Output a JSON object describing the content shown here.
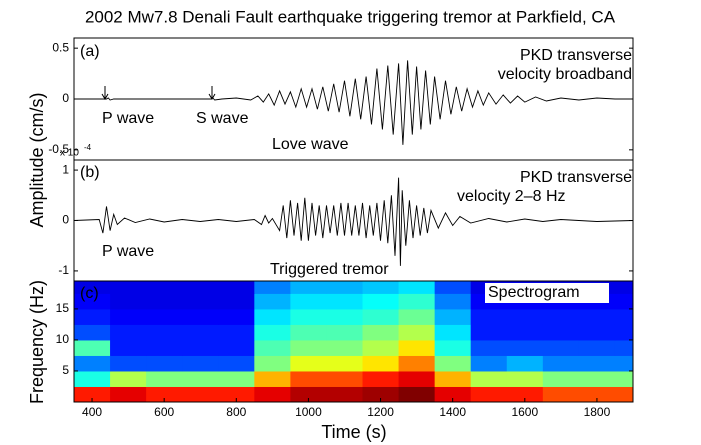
{
  "chart_data": [
    {
      "type": "line",
      "title": "2002 Mw7.8 Denali Fault earthquake triggering tremor at Parkfield, CA",
      "ylabel": "Amplitude (cm/s)",
      "panel_label": "(a)",
      "label_lines": [
        "PKD transverse",
        "velocity broadband"
      ],
      "annotations": [
        "P wave",
        "S wave",
        "Love wave"
      ],
      "multiplier": "x 10",
      "multiplier_exp": "-4",
      "xlim": [
        350,
        1900
      ],
      "ylim": [
        -0.6,
        0.6
      ],
      "yticks": [
        0.5,
        0,
        -0.5
      ],
      "color": "#000000",
      "x": [
        350,
        440,
        445,
        450,
        460,
        730,
        735,
        740,
        760,
        800,
        840,
        860,
        875,
        890,
        905,
        920,
        935,
        950,
        965,
        980,
        995,
        1010,
        1025,
        1040,
        1055,
        1070,
        1085,
        1100,
        1115,
        1130,
        1145,
        1160,
        1175,
        1190,
        1205,
        1220,
        1235,
        1250,
        1262,
        1275,
        1288,
        1300,
        1312,
        1325,
        1338,
        1350,
        1365,
        1380,
        1395,
        1410,
        1425,
        1440,
        1455,
        1470,
        1485,
        1500,
        1520,
        1540,
        1560,
        1580,
        1600,
        1630,
        1660,
        1700,
        1750,
        1800,
        1850,
        1900
      ],
      "values": [
        0,
        0,
        0.01,
        -0.01,
        0,
        0,
        0.01,
        -0.01,
        0,
        0.01,
        -0.01,
        0.03,
        -0.03,
        0.05,
        -0.06,
        0.08,
        -0.05,
        0.07,
        -0.08,
        0.1,
        -0.08,
        0.1,
        -0.1,
        0.12,
        -0.12,
        0.15,
        -0.13,
        0.18,
        -0.17,
        0.2,
        -0.2,
        0.22,
        -0.25,
        0.3,
        -0.3,
        0.33,
        -0.35,
        0.35,
        -0.45,
        0.38,
        -0.35,
        0.32,
        -0.3,
        0.28,
        -0.25,
        0.22,
        -0.2,
        0.18,
        -0.15,
        0.12,
        -0.12,
        0.1,
        -0.08,
        0.08,
        -0.06,
        0.06,
        -0.05,
        0.04,
        -0.04,
        0.03,
        -0.03,
        0.02,
        -0.02,
        0.01,
        -0.01,
        0.01,
        0,
        0
      ]
    },
    {
      "type": "line",
      "panel_label": "(b)",
      "label_lines": [
        "PKD transverse",
        "velocity 2–8 Hz"
      ],
      "annotations": [
        "P wave",
        "Triggered tremor"
      ],
      "xlim": [
        350,
        1900
      ],
      "ylim": [
        -1.2,
        1.2
      ],
      "yticks": [
        1,
        0,
        -1
      ],
      "color": "#000000",
      "x": [
        350,
        420,
        430,
        440,
        450,
        460,
        470,
        490,
        520,
        560,
        600,
        650,
        700,
        750,
        800,
        850,
        870,
        880,
        890,
        900,
        920,
        930,
        940,
        950,
        960,
        970,
        980,
        990,
        1000,
        1010,
        1020,
        1030,
        1040,
        1050,
        1060,
        1070,
        1080,
        1090,
        1100,
        1110,
        1120,
        1130,
        1140,
        1150,
        1160,
        1170,
        1180,
        1190,
        1200,
        1210,
        1220,
        1230,
        1240,
        1250,
        1255,
        1260,
        1270,
        1280,
        1290,
        1300,
        1310,
        1320,
        1330,
        1340,
        1360,
        1380,
        1400,
        1420,
        1450,
        1500,
        1550,
        1600,
        1650,
        1700,
        1800,
        1900
      ],
      "values": [
        0,
        0.02,
        -0.25,
        0.28,
        -0.2,
        0.12,
        -0.08,
        0.05,
        -0.04,
        0.03,
        -0.03,
        0.02,
        -0.02,
        0.02,
        -0.02,
        0.02,
        -0.08,
        0.1,
        -0.05,
        0.04,
        -0.2,
        0.3,
        -0.35,
        0.4,
        -0.3,
        0.35,
        -0.4,
        0.45,
        -0.4,
        0.35,
        -0.3,
        0.3,
        -0.35,
        0.3,
        -0.25,
        0.3,
        -0.3,
        0.35,
        -0.3,
        0.35,
        -0.3,
        0.3,
        -0.3,
        0.35,
        -0.35,
        0.3,
        -0.3,
        0.35,
        -0.4,
        0.4,
        -0.45,
        0.5,
        -0.7,
        0.85,
        -0.9,
        0.6,
        -0.5,
        0.4,
        -0.35,
        0.3,
        -0.3,
        0.25,
        -0.25,
        0.2,
        -0.15,
        0.15,
        -0.1,
        0.08,
        -0.05,
        0.04,
        -0.03,
        0.03,
        -0.02,
        0.02,
        -0.02,
        0
      ]
    },
    {
      "type": "heatmap",
      "ylabel": "Frequency (Hz)",
      "xlabel": "Time (s)",
      "panel_label": "(c)",
      "label_lines": [
        "Spectrogram"
      ],
      "colormap": "jet",
      "xlim": [
        350,
        1900
      ],
      "ylim": [
        0,
        19.5
      ],
      "xticks": [
        400,
        600,
        800,
        1000,
        1200,
        1400,
        1600,
        1800
      ],
      "yticks": [
        5,
        10,
        15
      ],
      "xbins": [
        350,
        450,
        550,
        650,
        750,
        850,
        950,
        1050,
        1150,
        1250,
        1350,
        1450,
        1550,
        1650,
        1750,
        1850,
        1950
      ],
      "ybins": [
        0,
        2.5,
        5,
        7.5,
        10,
        12.5,
        15,
        17.5,
        20
      ],
      "z": [
        [
          0.85,
          0.9,
          0.85,
          0.85,
          0.85,
          0.9,
          0.95,
          0.95,
          0.97,
          1.0,
          0.9,
          0.85,
          0.85,
          0.8,
          0.8,
          0.8
        ],
        [
          0.4,
          0.55,
          0.5,
          0.5,
          0.5,
          0.7,
          0.8,
          0.8,
          0.85,
          0.9,
          0.7,
          0.55,
          0.55,
          0.5,
          0.5,
          0.5
        ],
        [
          0.25,
          0.2,
          0.2,
          0.2,
          0.2,
          0.5,
          0.6,
          0.6,
          0.65,
          0.75,
          0.5,
          0.25,
          0.3,
          0.25,
          0.25,
          0.25
        ],
        [
          0.45,
          0.15,
          0.15,
          0.15,
          0.15,
          0.45,
          0.5,
          0.5,
          0.55,
          0.65,
          0.4,
          0.2,
          0.2,
          0.2,
          0.2,
          0.2
        ],
        [
          0.2,
          0.15,
          0.15,
          0.15,
          0.15,
          0.4,
          0.45,
          0.45,
          0.5,
          0.55,
          0.35,
          0.15,
          0.15,
          0.15,
          0.15,
          0.15
        ],
        [
          0.15,
          0.12,
          0.12,
          0.12,
          0.12,
          0.35,
          0.4,
          0.4,
          0.42,
          0.48,
          0.3,
          0.15,
          0.15,
          0.15,
          0.15,
          0.15
        ],
        [
          0.12,
          0.1,
          0.1,
          0.1,
          0.1,
          0.3,
          0.35,
          0.35,
          0.38,
          0.42,
          0.25,
          0.12,
          0.12,
          0.12,
          0.12,
          0.12
        ],
        [
          0.1,
          0.1,
          0.1,
          0.1,
          0.1,
          0.25,
          0.3,
          0.3,
          0.32,
          0.35,
          0.2,
          0.1,
          0.1,
          0.1,
          0.1,
          0.1
        ]
      ]
    }
  ]
}
